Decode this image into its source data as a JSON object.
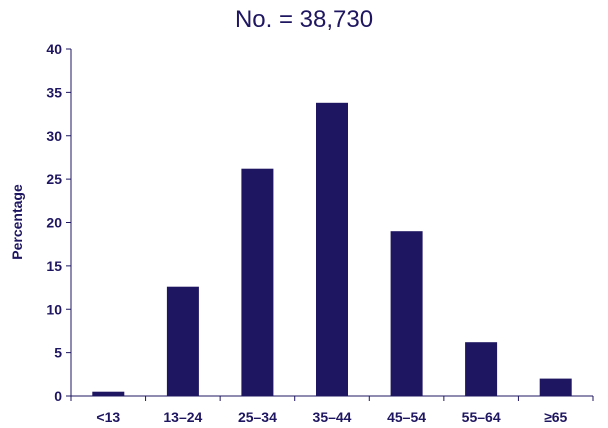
{
  "chart_data": {
    "type": "bar",
    "title": "No. = 38,730",
    "xlabel": "",
    "ylabel": "Percentage",
    "categories": [
      "<13",
      "13–24",
      "25–34",
      "35–44",
      "45–54",
      "55–64",
      "≥65"
    ],
    "values": [
      0.5,
      12.6,
      26.2,
      33.8,
      19.0,
      6.2,
      2.0
    ],
    "ylim": [
      0,
      40
    ],
    "yticks": [
      "0",
      "5",
      "10",
      "15",
      "20",
      "25",
      "30",
      "35",
      "40"
    ],
    "grid": false,
    "bar_color": "#1e1660",
    "text_color": "#1e1660"
  }
}
